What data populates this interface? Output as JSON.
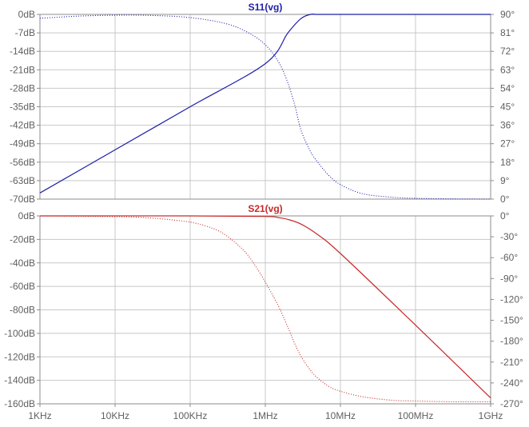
{
  "colors": {
    "s11": "#1f1fa8",
    "s21": "#c82828",
    "grid": "#c8c8c8",
    "frame": "#8c8c8c",
    "tick": "#606060"
  },
  "chart_data": [
    {
      "type": "line",
      "title": "S11(vg)",
      "x_scale": "log",
      "xlim": [
        1000,
        1000000000
      ],
      "x_ticks": [
        "1KHz",
        "10KHz",
        "100KHz",
        "1MHz",
        "10MHz",
        "100MHz",
        "1GHz"
      ],
      "ylim_left": [
        -70,
        0
      ],
      "left_ticks": [
        "0dB",
        "-7dB",
        "-14dB",
        "-21dB",
        "-28dB",
        "-35dB",
        "-42dB",
        "-49dB",
        "-56dB",
        "-63dB",
        "-70dB"
      ],
      "ylim_right": [
        0,
        90
      ],
      "right_ticks": [
        "90°",
        "81°",
        "72°",
        "63°",
        "54°",
        "45°",
        "36°",
        "27°",
        "18°",
        "9°",
        "0°"
      ],
      "grid": true,
      "series": [
        {
          "axis": "left",
          "style": "dotted",
          "color": "#1f1fa8",
          "x": [
            1000,
            3000,
            10000,
            30000,
            100000,
            300000,
            600000,
            1000000,
            1500000,
            2000000,
            2500000,
            3000000,
            4000000,
            5000000,
            7000000,
            10000000,
            20000000,
            50000000,
            100000000,
            300000000,
            1000000000
          ],
          "y": [
            -1.5,
            -0.7,
            -0.3,
            -0.4,
            -1.2,
            -3.5,
            -7,
            -11.5,
            -18,
            -26,
            -35,
            -44,
            -52,
            -56,
            -61,
            -64.5,
            -68,
            -69.3,
            -69.7,
            -69.9,
            -70
          ]
        },
        {
          "axis": "right",
          "style": "solid",
          "color": "#1f1fa8",
          "x": [
            1000,
            10000,
            100000,
            1000000,
            2000000,
            3000000,
            4000000,
            5000000,
            10000000,
            100000000,
            1000000000
          ],
          "y": [
            3,
            24,
            45,
            66,
            81,
            88,
            90,
            90,
            90,
            90,
            90
          ]
        }
      ]
    },
    {
      "type": "line",
      "title": "S21(vg)",
      "x_scale": "log",
      "xlim": [
        1000,
        1000000000
      ],
      "x_ticks": [
        "1KHz",
        "10KHz",
        "100KHz",
        "1MHz",
        "10MHz",
        "100MHz",
        "1GHz"
      ],
      "ylim_left": [
        -160,
        0
      ],
      "left_ticks": [
        "0dB",
        "-20dB",
        "-40dB",
        "-60dB",
        "-80dB",
        "-100dB",
        "-120dB",
        "-140dB",
        "-160dB"
      ],
      "ylim_right": [
        -270,
        0
      ],
      "right_ticks": [
        "0°",
        "-30°",
        "-60°",
        "-90°",
        "-120°",
        "-150°",
        "-180°",
        "-210°",
        "-240°",
        "-270°"
      ],
      "grid": true,
      "series": [
        {
          "axis": "left",
          "style": "solid",
          "color": "#c82828",
          "x": [
            1000,
            100000,
            1000000,
            1500000,
            2000000,
            3000000,
            5000000,
            10000000,
            100000000,
            1000000000
          ],
          "y": [
            0,
            0,
            -0.5,
            -1.5,
            -3,
            -7,
            -16,
            -32,
            -93,
            -155
          ]
        },
        {
          "axis": "right",
          "style": "dotted",
          "color": "#c82828",
          "x": [
            1000,
            10000,
            30000,
            100000,
            200000,
            300000,
            500000,
            700000,
            1000000,
            1500000,
            2000000,
            2500000,
            3000000,
            4000000,
            5000000,
            7000000,
            10000000,
            20000000,
            50000000,
            100000000,
            300000000,
            1000000000
          ],
          "y": [
            0,
            -1,
            -3,
            -9,
            -18,
            -28,
            -48,
            -68,
            -95,
            -130,
            -160,
            -185,
            -202,
            -222,
            -233,
            -245,
            -252,
            -260,
            -265,
            -266,
            -267,
            -267
          ]
        }
      ]
    }
  ]
}
